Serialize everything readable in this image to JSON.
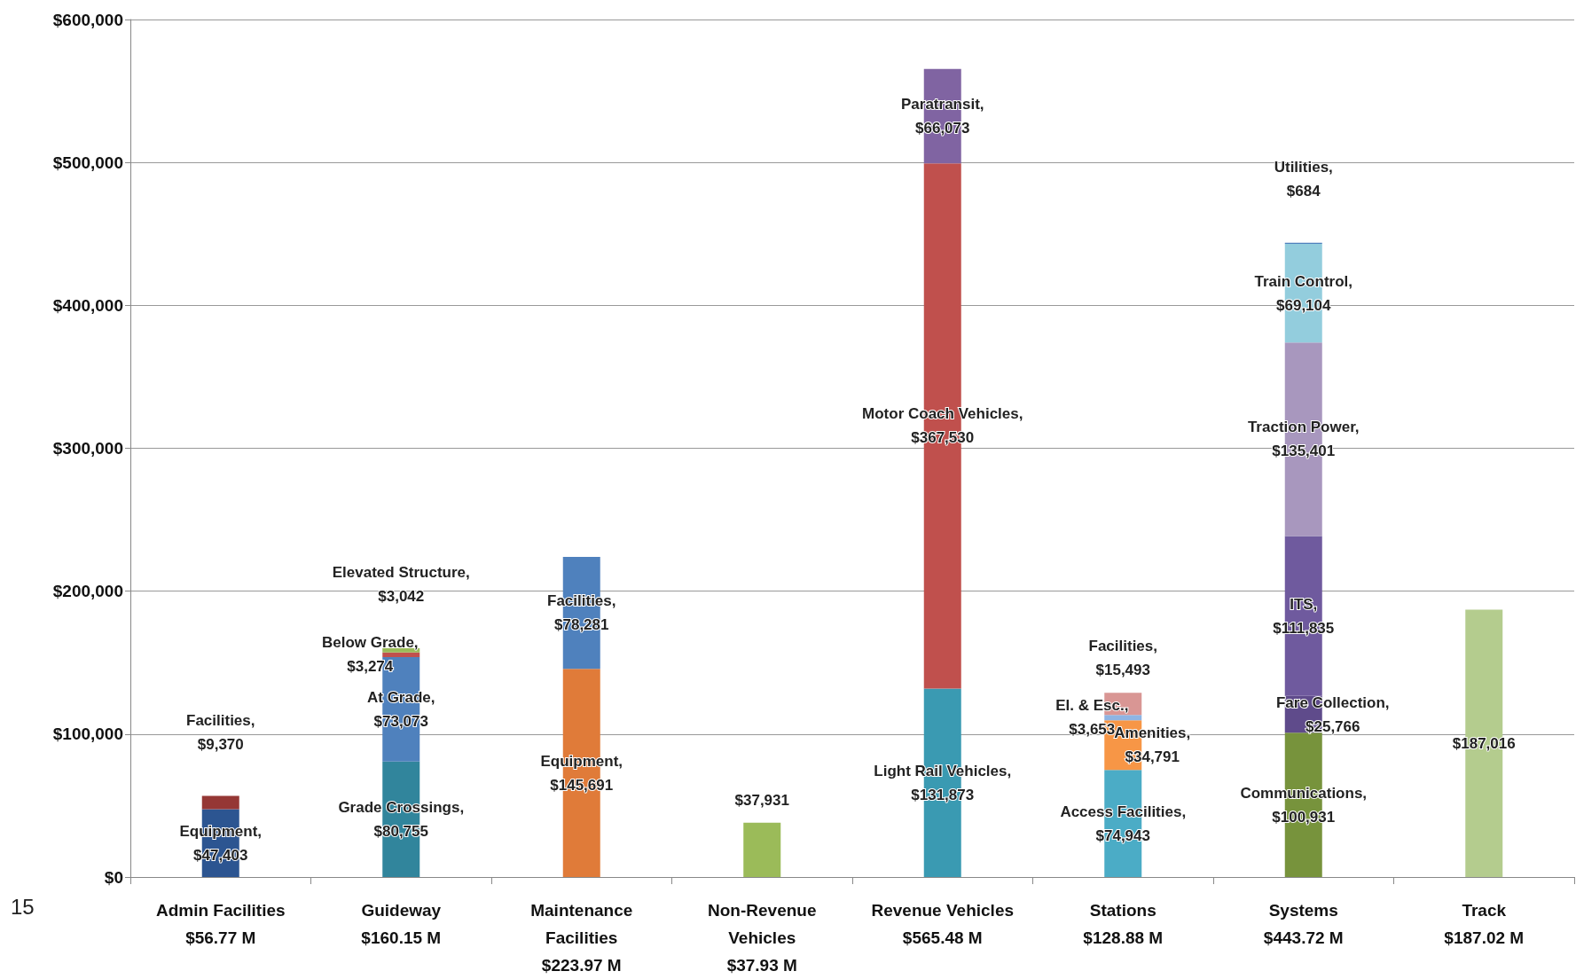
{
  "chart_data": {
    "type": "bar",
    "stacked": true,
    "categories": [
      "Admin Facilities\n$56.77 M",
      "Guideway\n$160.15 M",
      "Maintenance\nFacilities\n$223.97 M",
      "Non-Revenue\nVehicles\n$37.93 M",
      "Revenue Vehicles\n$565.48 M",
      "Stations\n$128.88 M",
      "Systems\n$443.72 M",
      "Track\n$187.02 M"
    ],
    "series": [
      {
        "values": [
          47403,
          80755,
          145691,
          37931,
          131873,
          74943,
          100931,
          187016
        ],
        "colors": [
          "#2c5591",
          "#31859c",
          "#e07b39",
          "#9bbb59",
          "#3a9ab2",
          "#4bacc6",
          "#77933c",
          "#b4cc8e"
        ],
        "value_labels": [
          "Equipment, $47,403",
          "Grade Crossings, $80,755",
          "Equipment, $145,691",
          "$37,931",
          "Light Rail Vehicles, $131,873",
          "Access Facilities, $74,943",
          "Communications, $100,931",
          "$187,016"
        ]
      },
      {
        "values": [
          9370,
          73073,
          78281,
          null,
          367530,
          34791,
          25766,
          null
        ],
        "colors": [
          "#953735",
          "#4f81bd",
          "#4f81bd",
          null,
          "#c0504d",
          "#f79646",
          "#5f4b8b",
          null
        ],
        "value_labels": [
          "Facilities, $9,370",
          "At Grade, $73,073",
          "Facilities, $78,281",
          null,
          "Motor Coach Vehicles, $367,530",
          "Amenities, $34,791",
          "Fare Collection, $25,766",
          null
        ]
      },
      {
        "values": [
          null,
          3274,
          null,
          null,
          66073,
          3653,
          111835,
          null
        ],
        "colors": [
          null,
          "#c0504d",
          null,
          null,
          "#8064a2",
          "#8eb4e3",
          "#6f5a9e",
          null
        ],
        "value_labels": [
          null,
          "Below Grade, $3,274",
          null,
          null,
          "Paratransit, $66,073",
          "El. & Esc., $3,653",
          "ITS, $111,835",
          null
        ]
      },
      {
        "values": [
          null,
          3042,
          null,
          null,
          null,
          15493,
          135401,
          null
        ],
        "colors": [
          null,
          "#9bbb59",
          null,
          null,
          null,
          "#d99694",
          "#a897be",
          null
        ],
        "value_labels": [
          null,
          "Elevated Structure, $3,042",
          null,
          null,
          null,
          "Facilities, $15,493",
          "Traction Power, $135,401",
          null
        ]
      },
      {
        "values": [
          null,
          null,
          null,
          null,
          null,
          null,
          69104,
          null
        ],
        "colors": [
          null,
          null,
          null,
          null,
          null,
          null,
          "#93cddd",
          null
        ],
        "value_labels": [
          null,
          null,
          null,
          null,
          null,
          null,
          "Train Control, $69,104",
          null
        ]
      },
      {
        "values": [
          null,
          null,
          null,
          null,
          null,
          null,
          684,
          null
        ],
        "colors": [
          null,
          null,
          null,
          null,
          null,
          null,
          "#4f81bd",
          null
        ],
        "value_labels": [
          null,
          null,
          null,
          null,
          null,
          null,
          "Utilities, $684",
          null
        ]
      }
    ],
    "ylim": [
      0,
      600000
    ],
    "yticks": [
      {
        "value": 0,
        "label": "$0"
      },
      {
        "value": 100000,
        "label": "$100,000"
      },
      {
        "value": 200000,
        "label": "$200,000"
      },
      {
        "value": 300000,
        "label": "$300,000"
      },
      {
        "value": 400000,
        "label": "$400,000"
      },
      {
        "value": 500000,
        "label": "$500,000"
      },
      {
        "value": 600000,
        "label": "$600,000"
      }
    ],
    "grid": "y",
    "annotations": [
      "15"
    ]
  }
}
